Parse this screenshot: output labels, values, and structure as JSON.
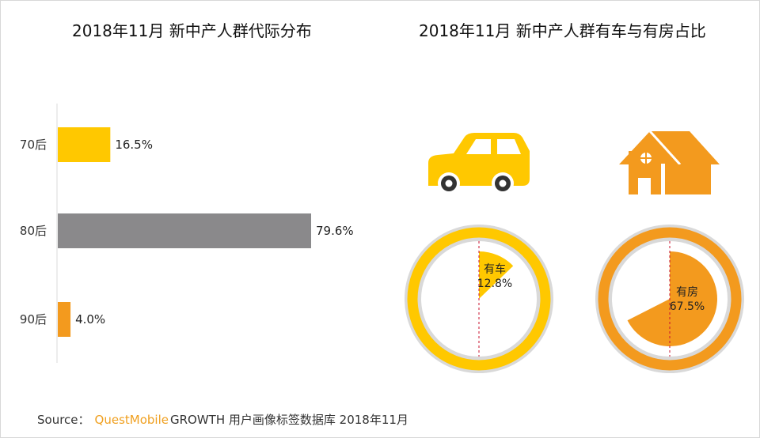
{
  "titles": {
    "left": "2018年11月 新中产人群代际分布",
    "right": "2018年11月 新中产人群有车与有房占比"
  },
  "source": {
    "label": "Source：",
    "brand": "QuestMobile",
    "rest": "GROWTH 用户画像标签数据库 2018年11月"
  },
  "colors": {
    "yellow": "#ffc800",
    "gray": "#8a898b",
    "orange": "#f39a1e",
    "ring_bg": "#d9d9d9",
    "divider": "#c8102e"
  },
  "chart_data": [
    {
      "type": "bar",
      "orientation": "horizontal",
      "title": "2018年11月 新中产人群代际分布",
      "categories": [
        "70后",
        "80后",
        "90后"
      ],
      "values": [
        16.5,
        79.6,
        4.0
      ],
      "value_labels": [
        "16.5%",
        "79.6%",
        "4.0%"
      ],
      "bar_colors": [
        "#ffc800",
        "#8a898b",
        "#f39a1e"
      ],
      "xlim": [
        0,
        100
      ],
      "grid": false
    },
    {
      "type": "pie",
      "title": "2018年11月 新中产人群有车与有房占比",
      "charts": [
        {
          "name": "有车",
          "value": 12.8,
          "label": "12.8%",
          "icon": "car-icon",
          "color": "#ffc800"
        },
        {
          "name": "有房",
          "value": 67.5,
          "label": "67.5%",
          "icon": "house-icon",
          "color": "#f39a1e"
        }
      ]
    }
  ]
}
